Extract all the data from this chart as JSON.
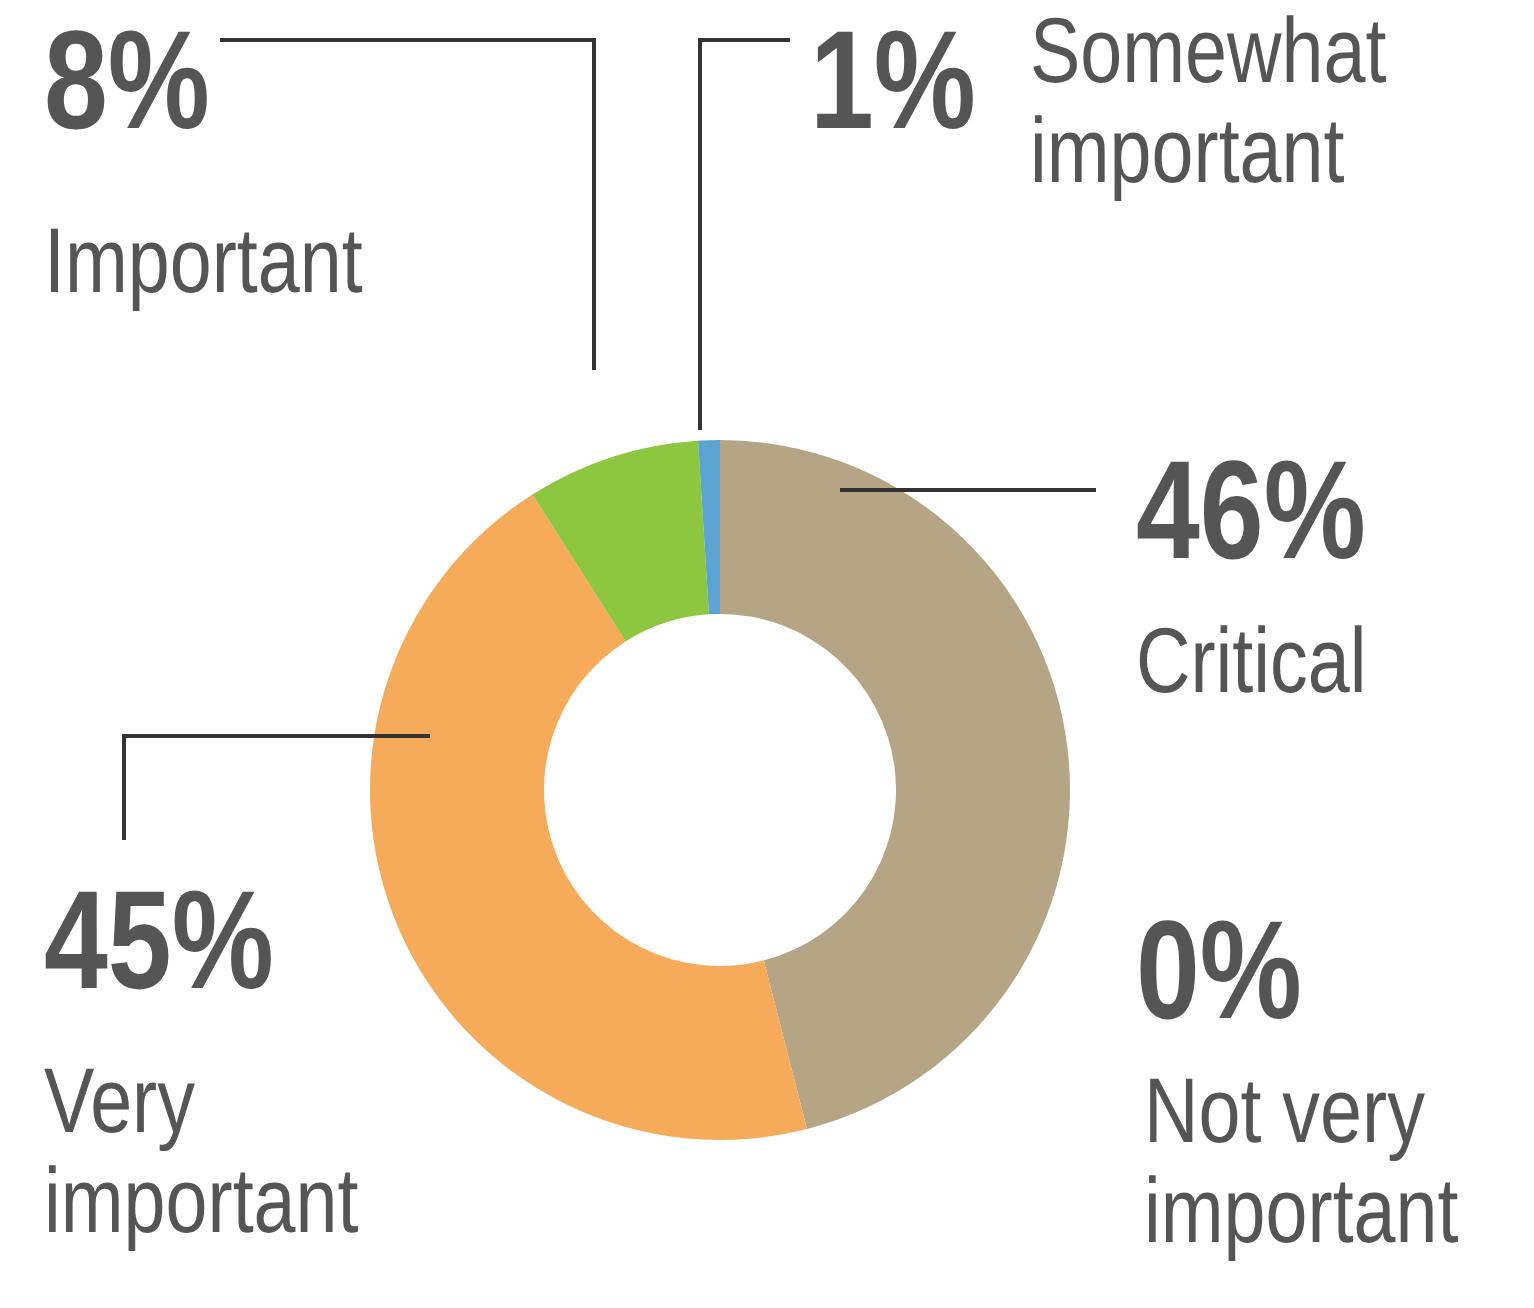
{
  "chart_data": {
    "type": "donut",
    "categories": [
      "Critical",
      "Not very important",
      "Very important",
      "Important",
      "Somewhat important"
    ],
    "values": [
      46,
      0,
      45,
      8,
      1
    ],
    "value_labels": [
      "46%",
      "0%",
      "45%",
      "8%",
      "1%"
    ],
    "colors": [
      "#b5a584",
      "#8a7a5a",
      "#f5ab5a",
      "#8dc63f",
      "#5ba3d0"
    ],
    "legend": false
  }
}
